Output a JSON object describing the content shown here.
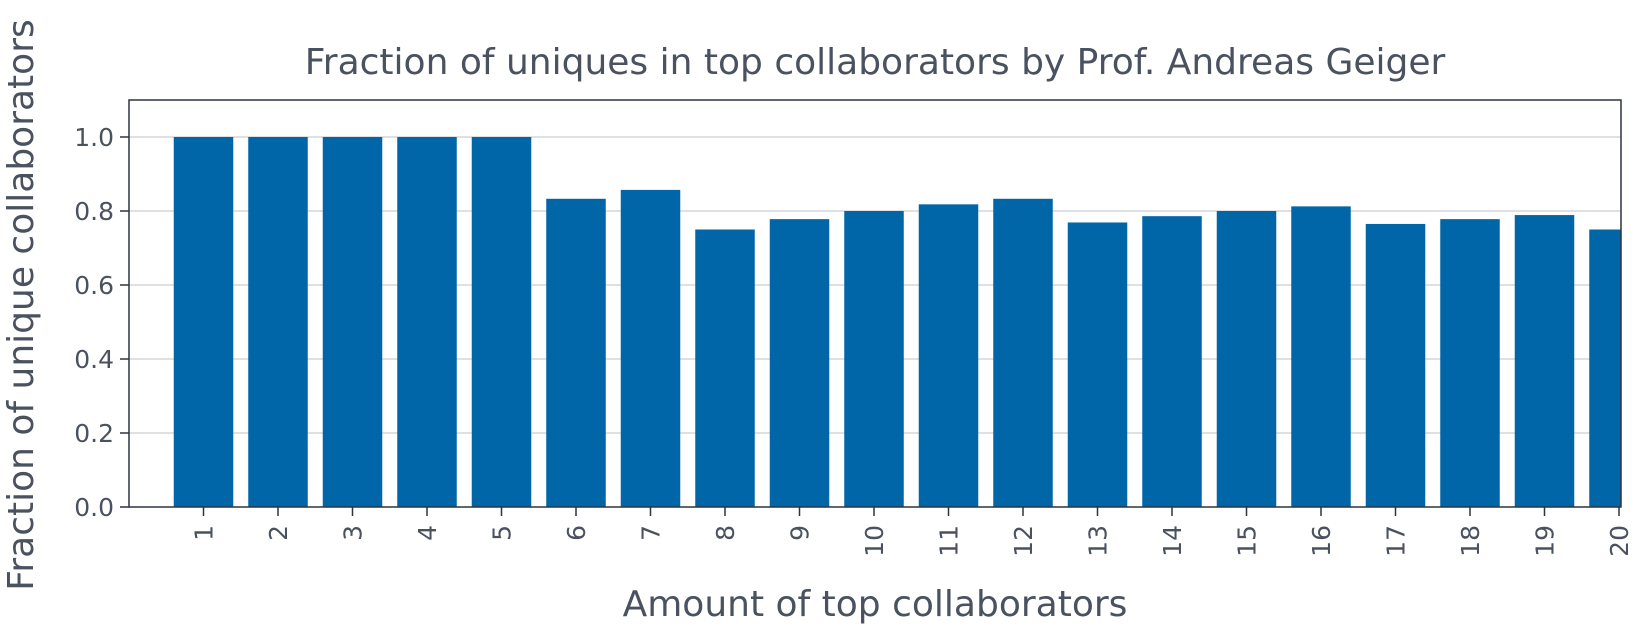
{
  "chart_data": {
    "type": "bar",
    "title": "Fraction of uniques in top collaborators by Prof. Andreas Geiger",
    "xlabel": "Amount of top collaborators",
    "ylabel": "Fraction of unique collaborators",
    "categories": [
      "1",
      "2",
      "3",
      "4",
      "5",
      "6",
      "7",
      "8",
      "9",
      "10",
      "11",
      "12",
      "13",
      "14",
      "15",
      "16",
      "17",
      "18",
      "19",
      "20"
    ],
    "values": [
      1.0,
      1.0,
      1.0,
      1.0,
      1.0,
      0.833,
      0.857,
      0.75,
      0.778,
      0.8,
      0.818,
      0.833,
      0.769,
      0.786,
      0.8,
      0.8125,
      0.765,
      0.778,
      0.789,
      0.75
    ],
    "ylim": [
      0,
      1.1
    ],
    "yticks": [
      "0.0",
      "0.2",
      "0.4",
      "0.6",
      "0.8",
      "1.0"
    ],
    "grid": "horizontal",
    "bar_color": "#0066a8",
    "grid_color": "#d3d6da",
    "axis_color": "#2d3340"
  }
}
